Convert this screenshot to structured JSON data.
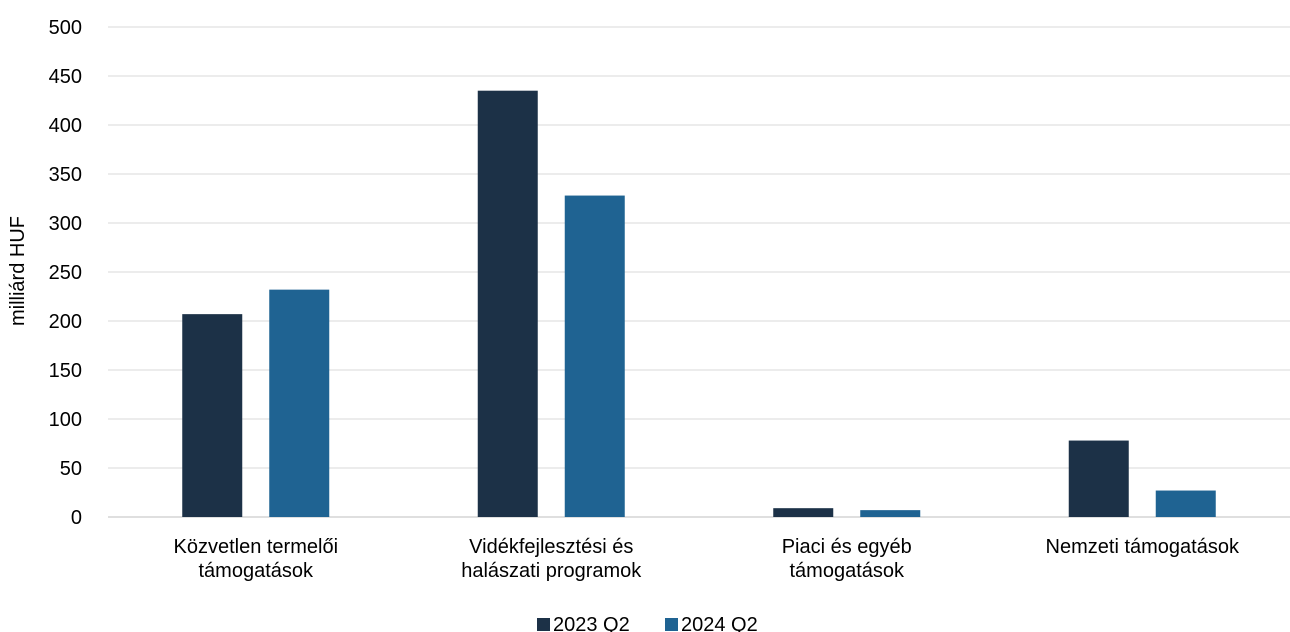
{
  "chart_data": {
    "type": "bar",
    "categories": [
      [
        "Közvetlen termelői",
        "támogatások"
      ],
      [
        "Vidékfejlesztési és",
        "halászati programok"
      ],
      [
        "Piaci és egyéb",
        "támogatások"
      ],
      [
        "Nemzeti támogatások"
      ]
    ],
    "series": [
      {
        "name": "2023 Q2",
        "color": "#1c3147",
        "values": [
          207,
          435,
          9,
          78
        ]
      },
      {
        "name": "2024 Q2",
        "color": "#1f6392",
        "values": [
          232,
          328,
          7,
          27
        ]
      }
    ],
    "ylabel": "milliárd HUF",
    "ylim": [
      0,
      500
    ],
    "yticks": [
      0,
      50,
      100,
      150,
      200,
      250,
      300,
      350,
      400,
      450,
      500
    ],
    "grid": true,
    "legend": "bottom"
  }
}
